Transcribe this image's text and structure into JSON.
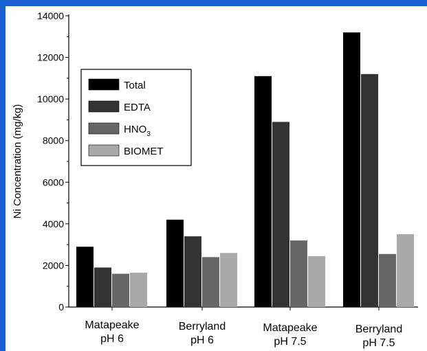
{
  "chart_data": {
    "type": "bar",
    "title": "",
    "xlabel": "",
    "ylabel": "Ni Concentration (mg/kg)",
    "ylim": [
      0,
      14000
    ],
    "yticks": [
      0,
      2000,
      4000,
      6000,
      8000,
      10000,
      12000,
      14000
    ],
    "grid": false,
    "legend_position": "top-left",
    "categories": [
      [
        "Matapeake",
        "pH 6"
      ],
      [
        "Berryland",
        "pH 6"
      ],
      [
        "Matapeake",
        "pH 7.5"
      ],
      [
        "Berryland",
        "pH 7.5"
      ]
    ],
    "series": [
      {
        "name": "Total",
        "label_main": "Total",
        "label_sub": "",
        "color": "#000000",
        "values": [
          2900,
          4200,
          11100,
          13200
        ]
      },
      {
        "name": "EDTA",
        "label_main": "EDTA",
        "label_sub": "",
        "color": "#333333",
        "values": [
          1900,
          3400,
          8900,
          11200
        ]
      },
      {
        "name": "HNO3",
        "label_main": "HNO",
        "label_sub": "3",
        "color": "#666666",
        "values": [
          1600,
          2400,
          3200,
          2550
        ]
      },
      {
        "name": "BIOMET",
        "label_main": "BIOMET",
        "label_sub": "",
        "color": "#a9a9a9",
        "values": [
          1650,
          2600,
          2450,
          3500
        ]
      }
    ]
  }
}
